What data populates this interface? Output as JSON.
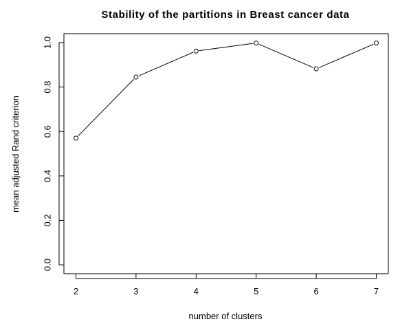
{
  "chart_data": {
    "type": "line",
    "title": "Stability of the partitions in Breast cancer data",
    "xlabel": "number of clusters",
    "ylabel": "mean adjusted Rand criterion",
    "x": [
      2,
      3,
      4,
      5,
      6,
      7
    ],
    "y": [
      0.57,
      0.845,
      0.962,
      0.998,
      0.882,
      0.998
    ],
    "xticks": [
      "2",
      "3",
      "4",
      "5",
      "6",
      "7"
    ],
    "yticks": [
      "0.0",
      "0.2",
      "0.4",
      "0.6",
      "0.8",
      "1.0"
    ],
    "xlim": [
      1.8,
      7.2
    ],
    "ylim": [
      -0.04,
      1.04
    ],
    "grid": false,
    "marker": "open-circle",
    "colors": {
      "line": "#000000",
      "marker": "#000000",
      "background": "#ffffff"
    }
  }
}
